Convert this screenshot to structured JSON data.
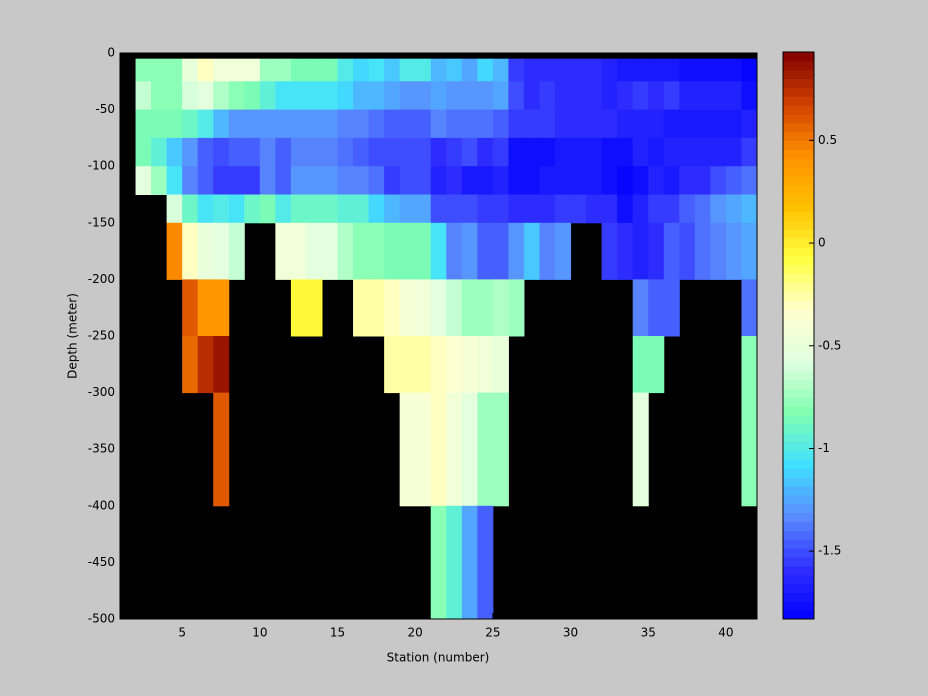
{
  "chart_data": {
    "type": "heatmap",
    "xlabel": "Station (number)",
    "ylabel": "Depth (meter)",
    "xbins": [
      1,
      2,
      3,
      4,
      5,
      6,
      7,
      8,
      9,
      10,
      11,
      12,
      13,
      14,
      15,
      16,
      17,
      18,
      19,
      20,
      21,
      22,
      23,
      24,
      25,
      26,
      27,
      28,
      29,
      30,
      31,
      32,
      33,
      34,
      35,
      36,
      37,
      38,
      39,
      40,
      41,
      42
    ],
    "ybins": [
      -5,
      -25,
      -50,
      -75,
      -100,
      -125,
      -150,
      -200,
      -250,
      -300,
      -400,
      -500
    ],
    "values": [
      [
        null,
        -0.8,
        -0.8,
        -0.8,
        -0.5,
        -0.3,
        -0.45,
        -0.45,
        -0.45,
        -0.75,
        -0.75,
        -0.85,
        -0.85,
        -0.85,
        -1.0,
        -1.1,
        -1.05,
        -1.15,
        -1.0,
        -1.0,
        -1.2,
        -1.15,
        -1.25,
        -1.1,
        -1.2,
        -1.55,
        -1.6,
        -1.6,
        -1.6,
        -1.6,
        -1.6,
        -1.65,
        -1.7,
        -1.7,
        -1.7,
        -1.7,
        -1.75,
        -1.75,
        -1.75,
        -1.75,
        -1.8
      ],
      [
        null,
        -0.65,
        -0.8,
        -0.8,
        -0.6,
        -0.55,
        -0.7,
        -0.8,
        -0.85,
        -0.95,
        -1.05,
        -1.05,
        -1.05,
        -1.05,
        -1.1,
        -1.2,
        -1.2,
        -1.25,
        -1.3,
        -1.3,
        -1.25,
        -1.3,
        -1.3,
        -1.3,
        -1.25,
        -1.5,
        -1.6,
        -1.55,
        -1.6,
        -1.6,
        -1.6,
        -1.65,
        -1.6,
        -1.55,
        -1.6,
        -1.55,
        -1.65,
        -1.65,
        -1.65,
        -1.65,
        -1.75
      ],
      [
        null,
        -0.85,
        -0.85,
        -0.85,
        -0.9,
        -1.0,
        -1.2,
        -1.3,
        -1.3,
        -1.3,
        -1.3,
        -1.3,
        -1.3,
        -1.3,
        -1.35,
        -1.35,
        -1.4,
        -1.45,
        -1.45,
        -1.45,
        -1.35,
        -1.4,
        -1.4,
        -1.4,
        -1.45,
        -1.55,
        -1.55,
        -1.55,
        -1.6,
        -1.6,
        -1.6,
        -1.6,
        -1.65,
        -1.65,
        -1.65,
        -1.7,
        -1.7,
        -1.7,
        -1.7,
        -1.7,
        -1.65
      ],
      [
        null,
        -0.85,
        -0.95,
        -1.15,
        -1.3,
        -1.45,
        -1.5,
        -1.45,
        -1.45,
        -1.35,
        -1.45,
        -1.35,
        -1.35,
        -1.35,
        -1.4,
        -1.45,
        -1.5,
        -1.5,
        -1.5,
        -1.5,
        -1.6,
        -1.55,
        -1.5,
        -1.6,
        -1.55,
        -1.75,
        -1.75,
        -1.75,
        -1.7,
        -1.7,
        -1.7,
        -1.75,
        -1.75,
        -1.65,
        -1.7,
        -1.65,
        -1.65,
        -1.65,
        -1.65,
        -1.65,
        -1.55
      ],
      [
        null,
        -0.55,
        -0.75,
        -1.05,
        -1.35,
        -1.45,
        -1.55,
        -1.55,
        -1.55,
        -1.35,
        -1.45,
        -1.3,
        -1.3,
        -1.3,
        -1.35,
        -1.35,
        -1.4,
        -1.55,
        -1.5,
        -1.5,
        -1.65,
        -1.6,
        -1.7,
        -1.7,
        -1.65,
        -1.75,
        -1.75,
        -1.7,
        -1.7,
        -1.7,
        -1.7,
        -1.75,
        -1.8,
        -1.75,
        -1.65,
        -1.7,
        -1.6,
        -1.6,
        -1.5,
        -1.45,
        -1.4
      ],
      [
        null,
        null,
        null,
        -0.6,
        -0.9,
        -1.05,
        -1.0,
        -1.05,
        -0.9,
        -0.85,
        -1.0,
        -0.9,
        -0.9,
        -0.9,
        -0.95,
        -0.95,
        -1.1,
        -1.2,
        -1.25,
        -1.25,
        -1.5,
        -1.5,
        -1.5,
        -1.55,
        -1.55,
        -1.6,
        -1.6,
        -1.6,
        -1.55,
        -1.55,
        -1.6,
        -1.6,
        -1.75,
        -1.65,
        -1.55,
        -1.55,
        -1.45,
        -1.4,
        -1.3,
        -1.25,
        -1.2
      ],
      [
        null,
        null,
        null,
        0.45,
        -0.3,
        -0.5,
        -0.55,
        -0.65,
        null,
        null,
        -0.45,
        -0.45,
        -0.55,
        -0.55,
        -0.7,
        -0.8,
        -0.8,
        -0.85,
        -0.85,
        -0.85,
        -1.05,
        -1.35,
        -1.3,
        -1.45,
        -1.45,
        -1.3,
        -1.15,
        -1.35,
        -1.3,
        null,
        null,
        -1.55,
        -1.6,
        -1.65,
        -1.6,
        -1.45,
        -1.5,
        -1.4,
        -1.35,
        -1.3,
        -1.25
      ],
      [
        null,
        null,
        null,
        null,
        0.6,
        0.4,
        0.4,
        null,
        null,
        null,
        null,
        -0.05,
        -0.05,
        null,
        null,
        -0.25,
        -0.25,
        -0.3,
        -0.4,
        -0.45,
        -0.55,
        -0.65,
        -0.75,
        -0.75,
        -0.7,
        -0.75,
        null,
        null,
        null,
        null,
        null,
        null,
        null,
        -1.35,
        -1.45,
        -1.45,
        null,
        null,
        null,
        null,
        -1.4
      ],
      [
        null,
        null,
        null,
        null,
        0.55,
        0.75,
        0.85,
        null,
        null,
        null,
        null,
        null,
        null,
        null,
        null,
        null,
        null,
        -0.25,
        -0.25,
        -0.25,
        -0.3,
        -0.35,
        -0.4,
        -0.45,
        -0.5,
        null,
        null,
        null,
        null,
        null,
        null,
        null,
        null,
        -0.85,
        -0.85,
        null,
        null,
        null,
        null,
        null,
        -0.8
      ],
      [
        null,
        null,
        null,
        null,
        null,
        null,
        0.6,
        null,
        null,
        null,
        null,
        null,
        null,
        null,
        null,
        null,
        null,
        null,
        -0.4,
        -0.4,
        -0.3,
        -0.45,
        -0.55,
        -0.75,
        -0.75,
        null,
        null,
        null,
        null,
        null,
        null,
        null,
        null,
        -0.55,
        null,
        null,
        null,
        null,
        null,
        null,
        -0.8
      ],
      [
        null,
        null,
        null,
        null,
        null,
        null,
        null,
        null,
        null,
        null,
        null,
        null,
        null,
        null,
        null,
        null,
        null,
        null,
        null,
        null,
        -0.8,
        -0.95,
        -1.25,
        -1.45,
        null,
        null,
        null,
        null,
        null,
        null,
        null,
        null,
        null,
        null,
        null,
        null,
        null,
        null,
        null,
        null,
        null
      ]
    ],
    "xlim": [
      1,
      42
    ],
    "ylim": [
      -500,
      0
    ],
    "xticks": [
      5,
      10,
      15,
      20,
      25,
      30,
      35,
      40
    ],
    "yticks": [
      0,
      -50,
      -100,
      -150,
      -200,
      -250,
      -300,
      -350,
      -400,
      -450,
      -500
    ],
    "clim": [
      -1.83,
      0.93
    ],
    "cticks": [
      -1.5,
      -1,
      -0.5,
      0,
      0.5
    ],
    "colormap": [
      "#0000ff",
      "#3030ff",
      "#5a8cff",
      "#40e0ff",
      "#80ffb0",
      "#e0ffe0",
      "#ffffd0",
      "#ffff40",
      "#ffc000",
      "#ff9000",
      "#d04000",
      "#800000"
    ],
    "background": "#000000"
  }
}
